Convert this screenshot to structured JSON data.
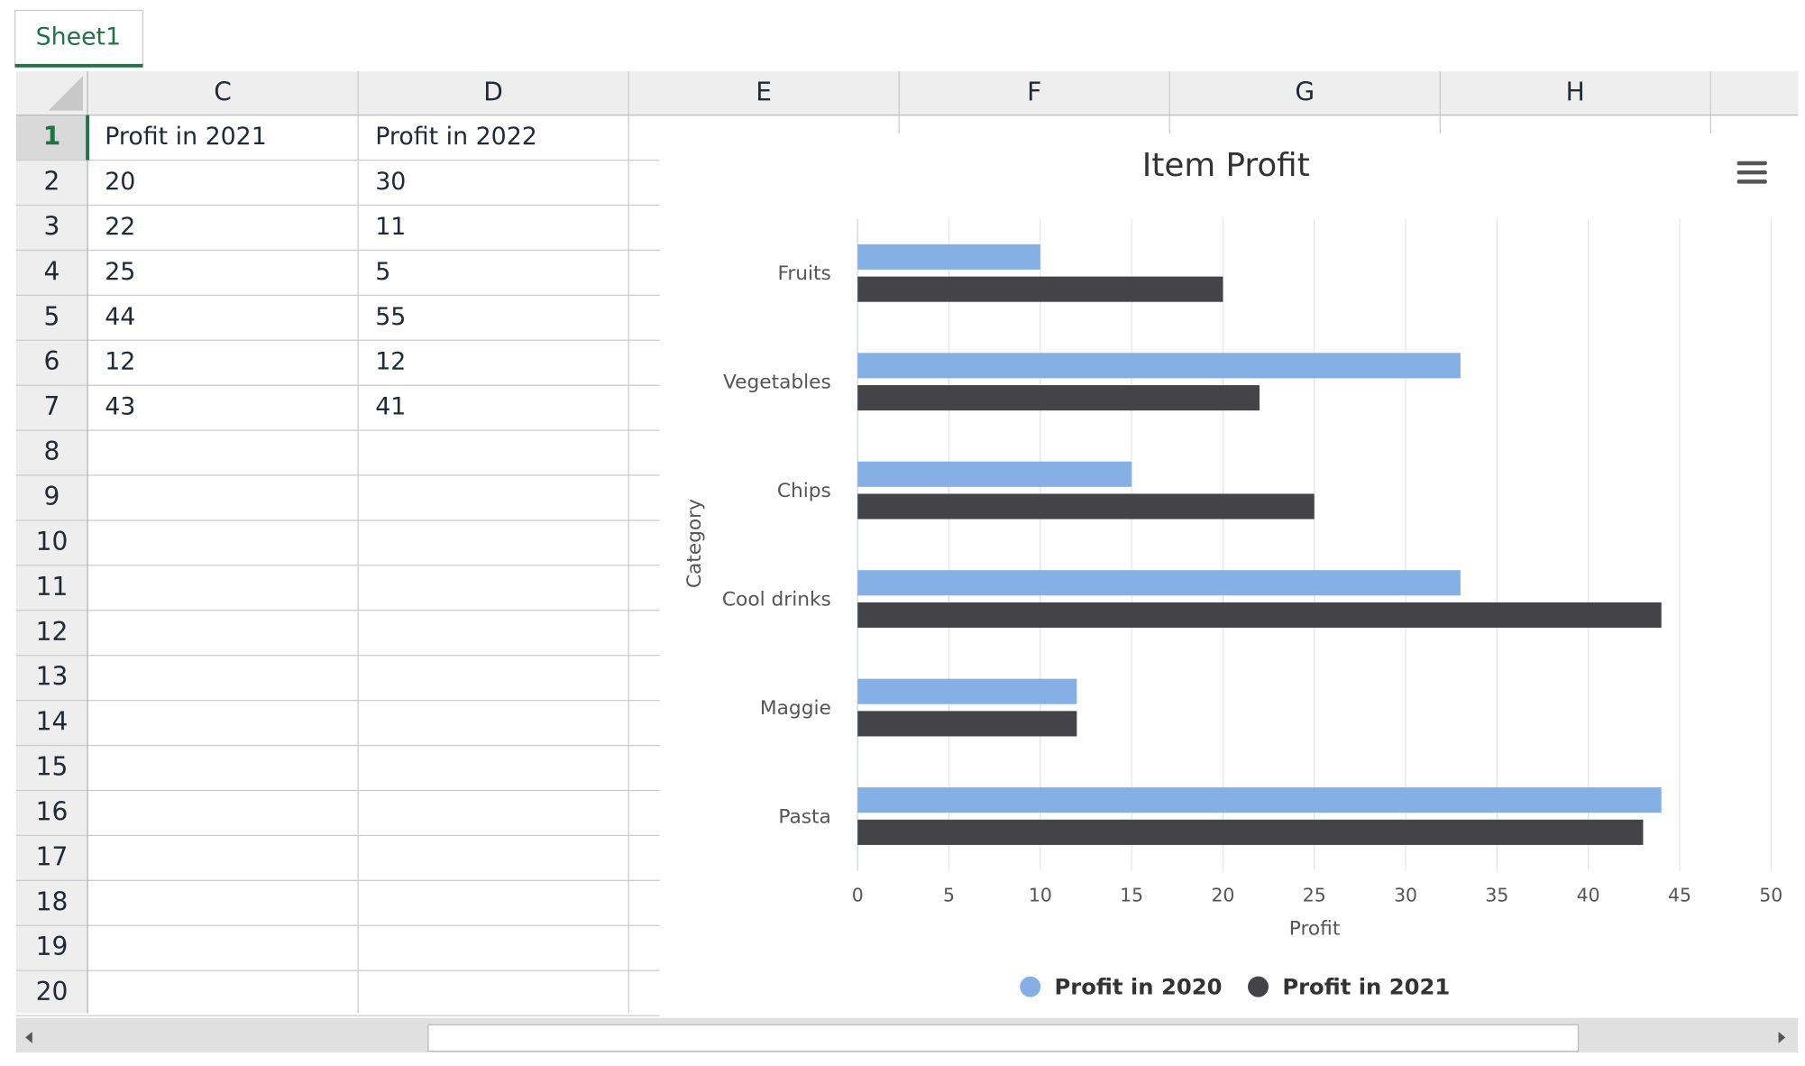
{
  "tab": "Sheet1",
  "columns": [
    "C",
    "D",
    "E",
    "F",
    "G",
    "H"
  ],
  "rows": [
    1,
    2,
    3,
    4,
    5,
    6,
    7,
    8,
    9,
    10,
    11,
    12,
    13,
    14,
    15,
    16,
    17,
    18,
    19,
    20
  ],
  "cells": [
    [
      "Profit in 2021",
      "Profit in 2022"
    ],
    [
      20,
      30
    ],
    [
      22,
      11
    ],
    [
      25,
      5
    ],
    [
      44,
      55
    ],
    [
      12,
      12
    ],
    [
      43,
      41
    ]
  ],
  "chart_data": {
    "type": "bar",
    "orientation": "horizontal",
    "title": "Item Profit",
    "x_label": "Profit",
    "y_label": "Category",
    "categories": [
      "Fruits",
      "Vegetables",
      "Chips",
      "Cool drinks",
      "Maggie",
      "Pasta"
    ],
    "series": [
      {
        "name": "Profit in 2020",
        "color": "#84b0e6",
        "values": [
          10,
          33,
          15,
          33,
          12,
          44
        ]
      },
      {
        "name": "Profit in 2021",
        "color": "#434348",
        "values": [
          20,
          22,
          25,
          44,
          12,
          43
        ]
      }
    ],
    "xlim": [
      0,
      50
    ],
    "xticks": [
      0,
      5,
      10,
      15,
      20,
      25,
      30,
      35,
      40,
      45,
      50
    ],
    "grid": true,
    "legend": "bottom"
  }
}
